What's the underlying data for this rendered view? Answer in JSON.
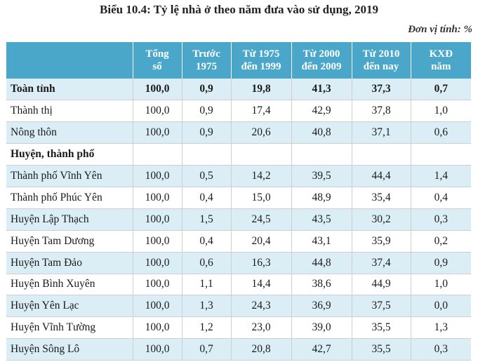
{
  "title": "Biểu 10.4: Tỷ lệ nhà ở theo năm đưa vào sử dụng, 2019",
  "unit": "Đơn vị tính: %",
  "headers": {
    "name": "",
    "total": [
      "Tổng",
      "số"
    ],
    "before1975": [
      "Trước",
      "1975"
    ],
    "y1975_1999": [
      "Từ 1975",
      "đến 1999"
    ],
    "y2000_2009": [
      "Từ 2000",
      "đến 2009"
    ],
    "y2010_now": [
      "Từ 2010",
      "đến nay"
    ],
    "unknown": [
      "KXĐ",
      "năm"
    ]
  },
  "rows": [
    {
      "name": "Toàn tỉnh",
      "values": [
        "100,0",
        "0,9",
        "19,8",
        "41,3",
        "37,3",
        "0,7"
      ]
    },
    {
      "name": "Thành thị",
      "values": [
        "100,0",
        "0,9",
        "17,4",
        "42,9",
        "37,8",
        "1,0"
      ]
    },
    {
      "name": "Nông thôn",
      "values": [
        "100,0",
        "0,9",
        "20,6",
        "40,8",
        "37,1",
        "0,6"
      ]
    },
    {
      "name": "Huyện, thành phố",
      "values": [
        "",
        "",
        "",
        "",
        "",
        ""
      ]
    },
    {
      "name": "Thành phố Vĩnh Yên",
      "values": [
        "100,0",
        "0,5",
        "14,2",
        "39,5",
        "44,4",
        "1,4"
      ]
    },
    {
      "name": "Thành phố Phúc Yên",
      "values": [
        "100,0",
        "0,4",
        "15,0",
        "48,9",
        "35,4",
        "0,4"
      ]
    },
    {
      "name": "Huyện Lập Thạch",
      "values": [
        "100,0",
        "1,5",
        "24,5",
        "43,5",
        "30,2",
        "0,3"
      ]
    },
    {
      "name": "Huyện Tam Dương",
      "values": [
        "100,0",
        "0,4",
        "20,4",
        "43,1",
        "35,9",
        "0,2"
      ]
    },
    {
      "name": "Huyện Tam Đảo",
      "values": [
        "100,0",
        "0,6",
        "16,3",
        "44,8",
        "37,4",
        "0,9"
      ]
    },
    {
      "name": "Huyện Bình Xuyên",
      "values": [
        "100,0",
        "1,1",
        "14,4",
        "38,6",
        "44,9",
        "1,0"
      ]
    },
    {
      "name": "Huyện Yên Lạc",
      "values": [
        "100,0",
        "1,3",
        "24,3",
        "36,9",
        "37,5",
        "0,0"
      ]
    },
    {
      "name": "Huyện Vĩnh Tường",
      "values": [
        "100,0",
        "1,2",
        "23,0",
        "39,0",
        "35,5",
        "1,3"
      ]
    },
    {
      "name": "Huyện Sông Lô",
      "values": [
        "100,0",
        "0,7",
        "20,8",
        "42,7",
        "35,5",
        "0,3"
      ]
    }
  ],
  "colors": {
    "header_bg": "#4aa7c9",
    "row_shade": "#dbeef6"
  }
}
